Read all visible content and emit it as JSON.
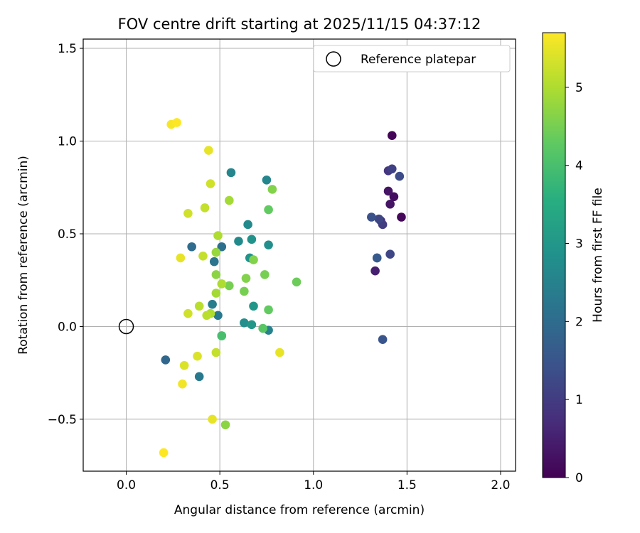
{
  "chart_data": {
    "type": "scatter",
    "title": "FOV centre drift starting at 2025/11/15 04:37:12",
    "xlabel": "Angular distance from reference (arcmin)",
    "ylabel": "Rotation from reference (arcmin)",
    "xlim": [
      -0.23,
      2.08
    ],
    "ylim": [
      -0.78,
      1.55
    ],
    "xticks": [
      0.0,
      0.5,
      1.0,
      1.5,
      2.0
    ],
    "xtick_labels": [
      "0.0",
      "0.5",
      "1.0",
      "1.5",
      "2.0"
    ],
    "yticks": [
      -0.5,
      0.0,
      0.5,
      1.0,
      1.5
    ],
    "ytick_labels": [
      "−0.5",
      "0.0",
      "0.5",
      "1.0",
      "1.5"
    ],
    "grid": true,
    "legend": {
      "position": "top-right",
      "entries": [
        {
          "label": "Reference platepar",
          "marker": "open-circle"
        }
      ]
    },
    "reference_point": {
      "x": 0.0,
      "y": 0.0
    },
    "colorbar": {
      "label": "Hours from first FF file",
      "colormap": "viridis",
      "range": [
        0,
        5.7
      ],
      "ticks": [
        0,
        1,
        2,
        3,
        4,
        5
      ],
      "tick_labels": [
        "0",
        "1",
        "2",
        "3",
        "4",
        "5"
      ]
    },
    "points": [
      {
        "x": 1.42,
        "y": 1.03,
        "hours": 0.05
      },
      {
        "x": 1.47,
        "y": 0.59,
        "hours": 0.1
      },
      {
        "x": 1.43,
        "y": 0.7,
        "hours": 0.2
      },
      {
        "x": 1.4,
        "y": 0.73,
        "hours": 0.3
      },
      {
        "x": 1.41,
        "y": 0.66,
        "hours": 0.3
      },
      {
        "x": 1.33,
        "y": 0.3,
        "hours": 0.5
      },
      {
        "x": 1.36,
        "y": 0.57,
        "hours": 0.7
      },
      {
        "x": 1.4,
        "y": 0.84,
        "hours": 0.9
      },
      {
        "x": 1.37,
        "y": 0.55,
        "hours": 1.0
      },
      {
        "x": 1.42,
        "y": 0.85,
        "hours": 1.1
      },
      {
        "x": 1.35,
        "y": 0.58,
        "hours": 1.2
      },
      {
        "x": 1.41,
        "y": 0.39,
        "hours": 1.2
      },
      {
        "x": 1.46,
        "y": 0.81,
        "hours": 1.3
      },
      {
        "x": 1.31,
        "y": 0.59,
        "hours": 1.4
      },
      {
        "x": 1.34,
        "y": 0.37,
        "hours": 1.5
      },
      {
        "x": 1.37,
        "y": -0.07,
        "hours": 1.5
      },
      {
        "x": 1.34,
        "y": 0.37,
        "hours": 1.6
      },
      {
        "x": 0.21,
        "y": -0.18,
        "hours": 1.9
      },
      {
        "x": 0.35,
        "y": 0.43,
        "hours": 2.0
      },
      {
        "x": 0.51,
        "y": 0.43,
        "hours": 2.1
      },
      {
        "x": 0.47,
        "y": 0.35,
        "hours": 2.2
      },
      {
        "x": 0.39,
        "y": -0.27,
        "hours": 2.3
      },
      {
        "x": 0.49,
        "y": 0.06,
        "hours": 2.3
      },
      {
        "x": 0.46,
        "y": 0.12,
        "hours": 2.4
      },
      {
        "x": 0.76,
        "y": -0.02,
        "hours": 2.5
      },
      {
        "x": 0.56,
        "y": 0.83,
        "hours": 2.6
      },
      {
        "x": 0.75,
        "y": 0.79,
        "hours": 2.6
      },
      {
        "x": 0.6,
        "y": 0.46,
        "hours": 2.7
      },
      {
        "x": 0.65,
        "y": 0.55,
        "hours": 2.7
      },
      {
        "x": 0.76,
        "y": 0.44,
        "hours": 2.8
      },
      {
        "x": 0.63,
        "y": 0.02,
        "hours": 2.8
      },
      {
        "x": 0.66,
        "y": 0.37,
        "hours": 2.9
      },
      {
        "x": 0.67,
        "y": 0.47,
        "hours": 2.9
      },
      {
        "x": 0.67,
        "y": 0.01,
        "hours": 3.0
      },
      {
        "x": 0.68,
        "y": 0.11,
        "hours": 3.0
      },
      {
        "x": 0.51,
        "y": -0.05,
        "hours": 3.6
      },
      {
        "x": 0.51,
        "y": -0.05,
        "hours": 4.0
      },
      {
        "x": 0.73,
        "y": -0.01,
        "hours": 4.2
      },
      {
        "x": 0.76,
        "y": 0.63,
        "hours": 4.3
      },
      {
        "x": 0.76,
        "y": 0.09,
        "hours": 4.3
      },
      {
        "x": 0.91,
        "y": 0.24,
        "hours": 4.4
      },
      {
        "x": 0.74,
        "y": 0.28,
        "hours": 4.5
      },
      {
        "x": 0.63,
        "y": 0.19,
        "hours": 4.5
      },
      {
        "x": 0.55,
        "y": 0.22,
        "hours": 4.5
      },
      {
        "x": 0.78,
        "y": 0.74,
        "hours": 4.6
      },
      {
        "x": 0.64,
        "y": 0.26,
        "hours": 4.6
      },
      {
        "x": 0.68,
        "y": 0.36,
        "hours": 4.6
      },
      {
        "x": 0.53,
        "y": -0.53,
        "hours": 4.7
      },
      {
        "x": 0.48,
        "y": 0.28,
        "hours": 4.7
      },
      {
        "x": 0.48,
        "y": 0.4,
        "hours": 4.8
      },
      {
        "x": 0.55,
        "y": 0.68,
        "hours": 4.9
      },
      {
        "x": 0.48,
        "y": 0.18,
        "hours": 4.9
      },
      {
        "x": 0.49,
        "y": 0.49,
        "hours": 5.0
      },
      {
        "x": 0.45,
        "y": 0.07,
        "hours": 5.0
      },
      {
        "x": 0.51,
        "y": 0.23,
        "hours": 5.0
      },
      {
        "x": 0.43,
        "y": 0.06,
        "hours": 5.1
      },
      {
        "x": 0.39,
        "y": 0.11,
        "hours": 5.1
      },
      {
        "x": 0.48,
        "y": -0.14,
        "hours": 5.2
      },
      {
        "x": 0.42,
        "y": 0.64,
        "hours": 5.2
      },
      {
        "x": 0.41,
        "y": 0.38,
        "hours": 5.2
      },
      {
        "x": 0.33,
        "y": 0.61,
        "hours": 5.3
      },
      {
        "x": 0.45,
        "y": 0.77,
        "hours": 5.3
      },
      {
        "x": 0.33,
        "y": 0.07,
        "hours": 5.3
      },
      {
        "x": 0.31,
        "y": -0.21,
        "hours": 5.4
      },
      {
        "x": 0.38,
        "y": -0.16,
        "hours": 5.4
      },
      {
        "x": 0.29,
        "y": 0.37,
        "hours": 5.5
      },
      {
        "x": 0.44,
        "y": 0.95,
        "hours": 5.5
      },
      {
        "x": 0.46,
        "y": -0.5,
        "hours": 5.5
      },
      {
        "x": 0.82,
        "y": -0.14,
        "hours": 5.5
      },
      {
        "x": 0.3,
        "y": -0.31,
        "hours": 5.6
      },
      {
        "x": 0.24,
        "y": 1.09,
        "hours": 5.65
      },
      {
        "x": 0.27,
        "y": 1.1,
        "hours": 5.7
      },
      {
        "x": 0.2,
        "y": -0.68,
        "hours": 5.7
      }
    ]
  }
}
